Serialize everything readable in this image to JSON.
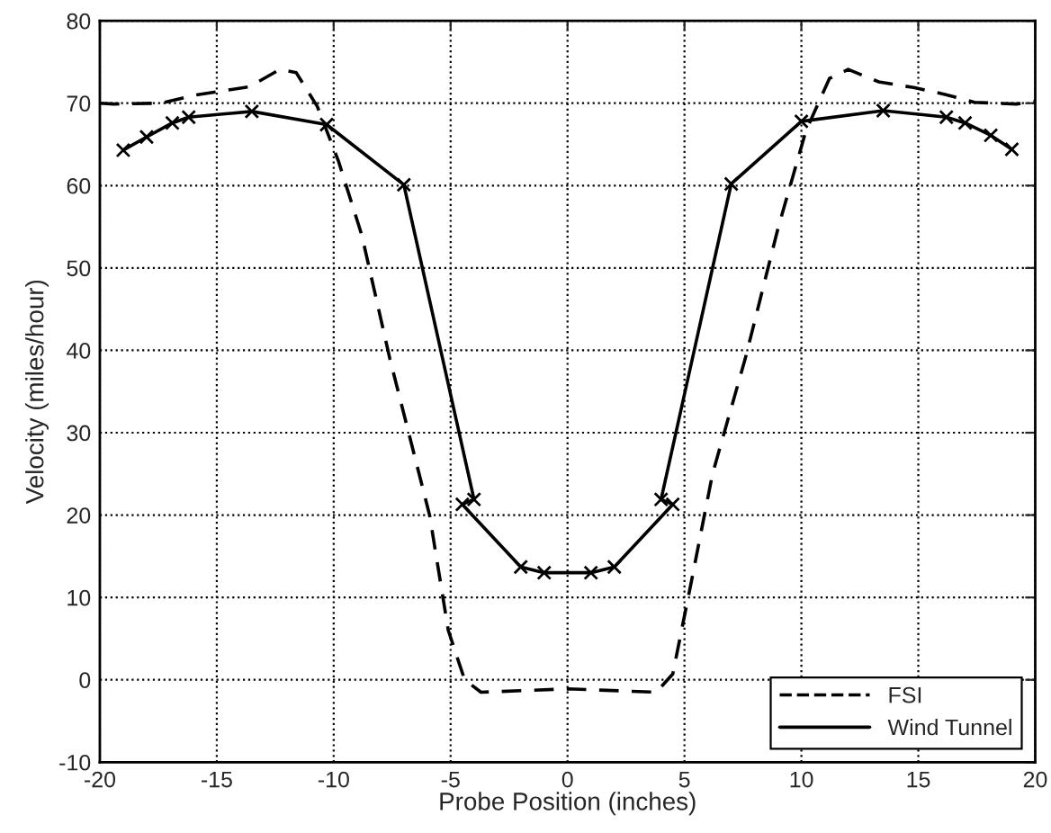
{
  "chart_data": {
    "type": "line",
    "xlabel": "Probe Position (inches)",
    "ylabel": "Velocity (miles/hour)",
    "xlim": [
      -20,
      20
    ],
    "xticks": [
      -20,
      -15,
      -10,
      -5,
      0,
      5,
      10,
      15,
      20
    ],
    "ylim": [
      -10,
      80
    ],
    "yticks": [
      -10,
      0,
      10,
      20,
      30,
      40,
      50,
      60,
      70,
      80
    ],
    "grid": true,
    "legend": "bottom right",
    "series": [
      {
        "name": "FSI",
        "color": "#000000",
        "line_style": "dashed",
        "marker": "none",
        "x": [
          -20,
          -19.4,
          -17.4,
          -15.9,
          -13.6,
          -12.3,
          -11.6,
          -10.7,
          -9.8,
          -8.8,
          -7.6,
          -5.9,
          -5.1,
          -4.4,
          -3.7,
          0,
          3.8,
          4.5,
          5.3,
          6.2,
          7.6,
          9,
          10.2,
          11.2,
          12,
          13.3,
          14.8,
          16.1,
          17.4,
          19.2,
          20
        ],
        "values": [
          70,
          69.9,
          70,
          71,
          72,
          74.1,
          73.7,
          69.6,
          63,
          54,
          39,
          20,
          6,
          0,
          -1.5,
          -1.1,
          -1.5,
          0.7,
          12,
          25,
          39,
          54.8,
          66.7,
          73,
          74.1,
          72.6,
          71.9,
          71.1,
          70.1,
          69.9,
          70.2
        ]
      },
      {
        "name": "Wind Tunnel",
        "color": "#000000",
        "line_style": "solid",
        "marker": "cross",
        "x": [
          -19,
          -18,
          -16.9,
          -16.2,
          -13.5,
          -10.3,
          -7,
          -4,
          -4.5,
          -2,
          -1,
          1,
          2,
          4.5,
          4,
          7,
          10,
          13.5,
          16.2,
          17,
          18.1,
          19
        ],
        "values": [
          64.3,
          65.9,
          67.6,
          68.3,
          69,
          67.4,
          60.1,
          21.9,
          21.3,
          13.7,
          13,
          13,
          13.7,
          21.3,
          21.9,
          60.2,
          67.8,
          69.1,
          68.3,
          67.6,
          66.1,
          64.4
        ]
      }
    ]
  }
}
